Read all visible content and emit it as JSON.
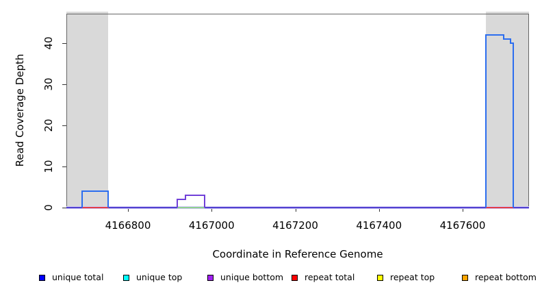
{
  "chart_data": {
    "type": "line",
    "subtype": "step-coverage-plot",
    "title": "",
    "xlabel": "Coordinate in Reference Genome",
    "ylabel": "Read Coverage Depth",
    "xlim": [
      4166653,
      4167759
    ],
    "ylim": [
      0,
      47.7
    ],
    "x_ticks": [
      4166800,
      4167000,
      4167200,
      4167400,
      4167600
    ],
    "y_ticks": [
      0,
      10,
      20,
      30,
      40
    ],
    "grid": false,
    "legend_position": "bottom",
    "shaded_regions": [
      {
        "name": "left-gray-band",
        "start": 4166653,
        "end": 4166753,
        "color": "#d9d9d9"
      },
      {
        "name": "right-gray-band",
        "start": 4167656,
        "end": 4167759,
        "color": "#d9d9d9"
      }
    ],
    "baseline": {
      "depth": 0,
      "color": "#5040d0",
      "halo": "#cfc8f5"
    },
    "series": [
      {
        "name": "unique total",
        "legend_color": "#0000ff",
        "line_color": "#2b6def",
        "groups": [
          {
            "segments": [
              {
                "start": 4166690,
                "end": 4166753,
                "depth": 4
              }
            ]
          },
          {
            "segments": [
              {
                "start": 4167656,
                "end": 4167698,
                "depth": 42
              },
              {
                "start": 4167698,
                "end": 4167714,
                "depth": 41
              },
              {
                "start": 4167714,
                "end": 4167721,
                "depth": 40
              }
            ]
          }
        ]
      },
      {
        "name": "unique top",
        "legend_color": "#00ffff",
        "line_color": "#00cccc",
        "groups": []
      },
      {
        "name": "unique bottom",
        "legend_color": "#a020f0",
        "line_color": "#7040d8",
        "groups": [
          {
            "segments": [
              {
                "start": 4166918,
                "end": 4166937,
                "depth": 2
              },
              {
                "start": 4166937,
                "end": 4166983,
                "depth": 3
              }
            ]
          }
        ]
      },
      {
        "name": "repeat total",
        "legend_color": "#ff0000",
        "line_color": "#e23d47",
        "groups": []
      },
      {
        "name": "repeat top",
        "legend_color": "#ffff00",
        "line_color": "#e8e060",
        "groups": []
      },
      {
        "name": "repeat bottom",
        "legend_color": "#ffa500",
        "line_color": "#f0a030",
        "groups": []
      }
    ],
    "zero_overlays": [
      {
        "series": "repeat total",
        "color": "#e23d47",
        "start": 4166690,
        "end": 4166754
      },
      {
        "series": "top-strand overlap",
        "color": "#8fd08f",
        "start": 4166918,
        "end": 4166983
      },
      {
        "series": "repeat total",
        "color": "#e23d47",
        "start": 4167656,
        "end": 4167721
      }
    ],
    "legend": [
      {
        "label": "unique total",
        "color": "#0000ff"
      },
      {
        "label": "unique top",
        "color": "#00ffff"
      },
      {
        "label": "unique bottom",
        "color": "#a020f0"
      },
      {
        "label": "repeat total",
        "color": "#ff0000"
      },
      {
        "label": "repeat top",
        "color": "#ffff00"
      },
      {
        "label": "repeat bottom",
        "color": "#ffa500"
      }
    ]
  }
}
